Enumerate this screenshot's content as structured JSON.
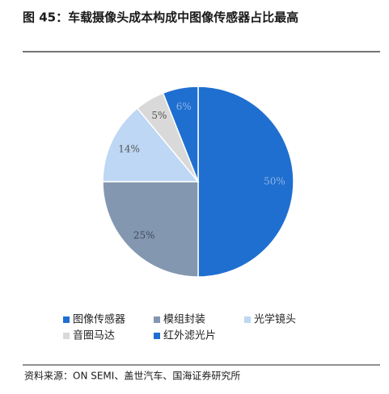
{
  "chart_data": {
    "type": "pie",
    "title": "图 45：车载摄像头成本构成中图像传感器占比最高",
    "categories": [
      "图像传感器",
      "模组封装",
      "光学镜头",
      "音圈马达",
      "红外滤光片"
    ],
    "values": [
      50,
      25,
      14,
      5,
      6
    ],
    "value_labels": [
      "50%",
      "25%",
      "14%",
      "5%",
      "6%"
    ],
    "colors": [
      "#1f6fd0",
      "#8497b0",
      "#bdd7f4",
      "#d9d9d9",
      "#1f6fd0"
    ],
    "legend": "bottom",
    "source": "资料来源：ON SEMI、盖世汽车、国海证券研究所"
  }
}
